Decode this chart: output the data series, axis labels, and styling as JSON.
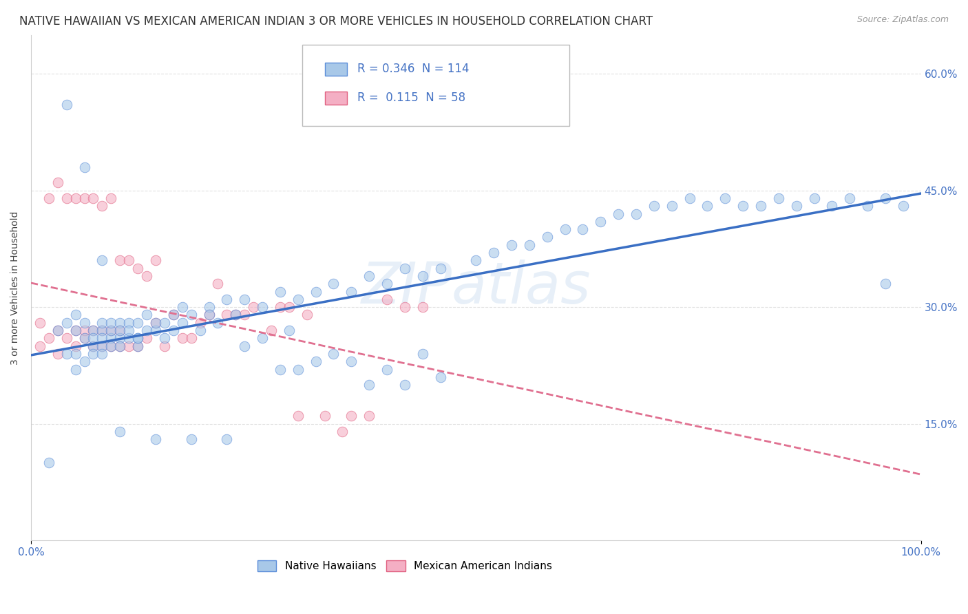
{
  "title": "NATIVE HAWAIIAN VS MEXICAN AMERICAN INDIAN 3 OR MORE VEHICLES IN HOUSEHOLD CORRELATION CHART",
  "source": "Source: ZipAtlas.com",
  "ylabel": "3 or more Vehicles in Household",
  "xlim": [
    0,
    1.0
  ],
  "ylim": [
    0,
    0.65
  ],
  "xtick_vals": [
    0.0,
    1.0
  ],
  "xticklabels": [
    "0.0%",
    "100.0%"
  ],
  "ytick_vals": [
    0.15,
    0.3,
    0.45,
    0.6
  ],
  "yticklabels": [
    "15.0%",
    "30.0%",
    "45.0%",
    "60.0%"
  ],
  "blue_color": "#a8c8e8",
  "pink_color": "#f4afc4",
  "blue_edge_color": "#5b8dd9",
  "pink_edge_color": "#e06080",
  "blue_line_color": "#3a6fc4",
  "pink_line_color": "#e07090",
  "grid_color": "#dddddd",
  "background_color": "#ffffff",
  "title_fontsize": 12,
  "axis_label_fontsize": 10,
  "tick_fontsize": 11,
  "watermark": "ZIPatlas",
  "blue_scatter_x": [
    0.02,
    0.03,
    0.04,
    0.04,
    0.05,
    0.05,
    0.05,
    0.05,
    0.06,
    0.06,
    0.06,
    0.07,
    0.07,
    0.07,
    0.07,
    0.08,
    0.08,
    0.08,
    0.08,
    0.08,
    0.09,
    0.09,
    0.09,
    0.09,
    0.1,
    0.1,
    0.1,
    0.1,
    0.11,
    0.11,
    0.11,
    0.12,
    0.12,
    0.12,
    0.13,
    0.13,
    0.14,
    0.14,
    0.15,
    0.15,
    0.16,
    0.17,
    0.17,
    0.18,
    0.19,
    0.2,
    0.21,
    0.22,
    0.23,
    0.24,
    0.26,
    0.28,
    0.29,
    0.3,
    0.32,
    0.34,
    0.36,
    0.38,
    0.4,
    0.42,
    0.44,
    0.46,
    0.5,
    0.52,
    0.54,
    0.56,
    0.58,
    0.6,
    0.62,
    0.64,
    0.66,
    0.68,
    0.7,
    0.72,
    0.74,
    0.76,
    0.78,
    0.8,
    0.82,
    0.84,
    0.86,
    0.88,
    0.9,
    0.92,
    0.94,
    0.96,
    0.98,
    0.04,
    0.06,
    0.08,
    0.1,
    0.12,
    0.14,
    0.16,
    0.18,
    0.2,
    0.22,
    0.24,
    0.26,
    0.28,
    0.3,
    0.32,
    0.34,
    0.36,
    0.38,
    0.4,
    0.42,
    0.44,
    0.46,
    0.96
  ],
  "blue_scatter_y": [
    0.1,
    0.27,
    0.24,
    0.28,
    0.27,
    0.29,
    0.22,
    0.24,
    0.26,
    0.28,
    0.23,
    0.25,
    0.27,
    0.24,
    0.26,
    0.25,
    0.27,
    0.26,
    0.28,
    0.24,
    0.26,
    0.27,
    0.25,
    0.28,
    0.26,
    0.28,
    0.25,
    0.27,
    0.26,
    0.28,
    0.27,
    0.25,
    0.28,
    0.26,
    0.27,
    0.29,
    0.27,
    0.28,
    0.26,
    0.28,
    0.29,
    0.28,
    0.3,
    0.29,
    0.27,
    0.3,
    0.28,
    0.31,
    0.29,
    0.31,
    0.3,
    0.32,
    0.27,
    0.31,
    0.32,
    0.33,
    0.32,
    0.34,
    0.33,
    0.35,
    0.34,
    0.35,
    0.36,
    0.37,
    0.38,
    0.38,
    0.39,
    0.4,
    0.4,
    0.41,
    0.42,
    0.42,
    0.43,
    0.43,
    0.44,
    0.43,
    0.44,
    0.43,
    0.43,
    0.44,
    0.43,
    0.44,
    0.43,
    0.44,
    0.43,
    0.44,
    0.43,
    0.56,
    0.48,
    0.36,
    0.14,
    0.26,
    0.13,
    0.27,
    0.13,
    0.29,
    0.13,
    0.25,
    0.26,
    0.22,
    0.22,
    0.23,
    0.24,
    0.23,
    0.2,
    0.22,
    0.2,
    0.24,
    0.21,
    0.33
  ],
  "pink_scatter_x": [
    0.01,
    0.01,
    0.02,
    0.02,
    0.03,
    0.03,
    0.03,
    0.04,
    0.04,
    0.05,
    0.05,
    0.05,
    0.06,
    0.06,
    0.06,
    0.07,
    0.07,
    0.07,
    0.08,
    0.08,
    0.08,
    0.09,
    0.09,
    0.09,
    0.1,
    0.1,
    0.1,
    0.11,
    0.11,
    0.12,
    0.12,
    0.13,
    0.13,
    0.14,
    0.14,
    0.15,
    0.16,
    0.17,
    0.18,
    0.19,
    0.2,
    0.21,
    0.22,
    0.23,
    0.24,
    0.25,
    0.27,
    0.28,
    0.29,
    0.3,
    0.31,
    0.33,
    0.35,
    0.36,
    0.38,
    0.4,
    0.42,
    0.44
  ],
  "pink_scatter_y": [
    0.25,
    0.28,
    0.26,
    0.44,
    0.24,
    0.46,
    0.27,
    0.26,
    0.44,
    0.25,
    0.44,
    0.27,
    0.26,
    0.44,
    0.27,
    0.25,
    0.44,
    0.27,
    0.25,
    0.43,
    0.27,
    0.25,
    0.44,
    0.27,
    0.25,
    0.36,
    0.27,
    0.25,
    0.36,
    0.25,
    0.35,
    0.26,
    0.34,
    0.28,
    0.36,
    0.25,
    0.29,
    0.26,
    0.26,
    0.28,
    0.29,
    0.33,
    0.29,
    0.29,
    0.29,
    0.3,
    0.27,
    0.3,
    0.3,
    0.16,
    0.29,
    0.16,
    0.14,
    0.16,
    0.16,
    0.31,
    0.3,
    0.3
  ]
}
